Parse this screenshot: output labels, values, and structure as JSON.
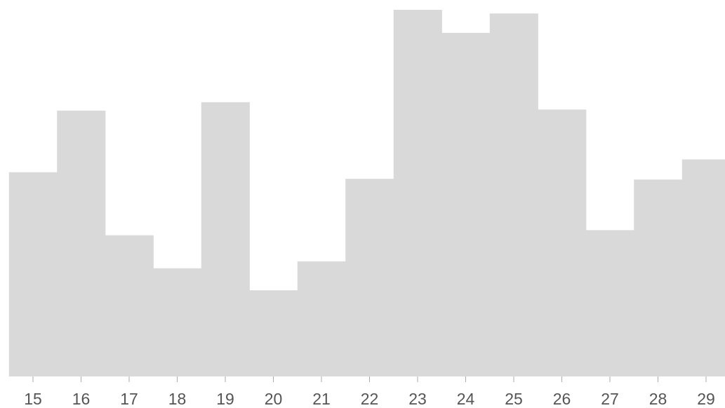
{
  "colors": {
    "background": "#ffffff",
    "bar_fill": "#d9d9d9",
    "tick_text": "#555555",
    "tick_mark": "#aaaaaa"
  },
  "chart_data": {
    "type": "bar",
    "style": "step-histogram",
    "title": "",
    "xlabel": "",
    "ylabel": "",
    "categories": [
      "15",
      "16",
      "17",
      "18",
      "19",
      "20",
      "21",
      "22",
      "23",
      "24",
      "25",
      "26",
      "27",
      "28",
      "29"
    ],
    "values": [
      55.7,
      72.5,
      38.5,
      29.5,
      74.8,
      23.5,
      31.4,
      53.9,
      100.0,
      93.7,
      99.0,
      72.8,
      39.9,
      53.7,
      59.2
    ],
    "ylim": [
      0,
      100
    ],
    "grid": false,
    "legend": "none"
  }
}
